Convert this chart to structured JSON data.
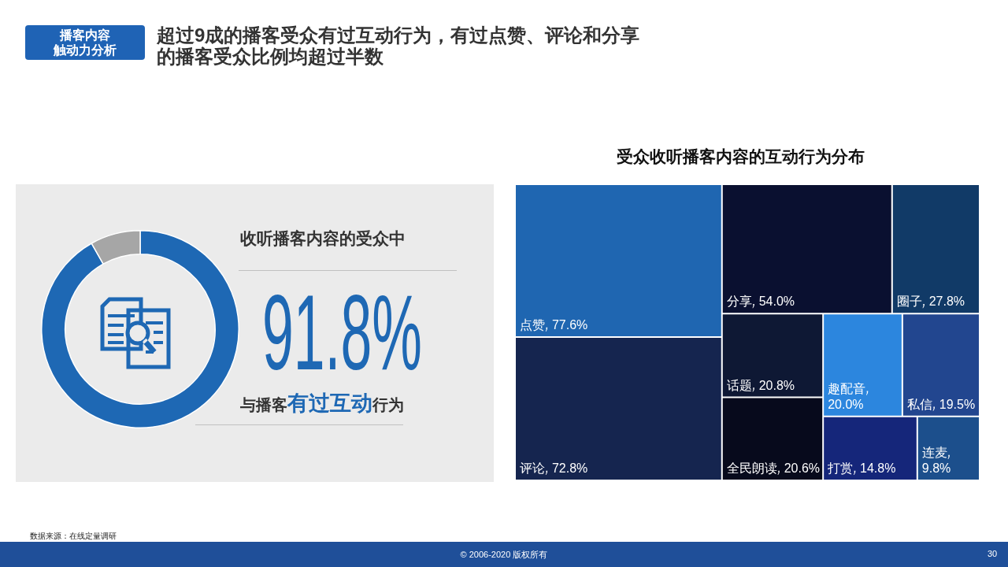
{
  "chart_data": [
    {
      "type": "donut",
      "title": "收听播客内容的受众中",
      "categories": [
        null,
        null
      ],
      "values": [
        91.8,
        8.2
      ],
      "colors": [
        "#1e68b4",
        "#a6a6a6"
      ],
      "value_labels": [
        "91.8%",
        null
      ],
      "annotations": [
        "播客内容",
        "触动力分析",
        "超过9成的播客受众有过互动行为，有过点赞、评论和分享的播客受众比例均超过半数",
        "与播客",
        "有过互动",
        "行为",
        "数据来源：在线定量调研",
        "© 2006-2020 版权所有",
        "30"
      ]
    },
    {
      "type": "other",
      "title": "受众收听播客内容的互动行为分布",
      "categories": [
        "点赞",
        "评论",
        "分享",
        "圈子",
        "话题",
        "全民朗读",
        "趣配音",
        "私信",
        "打赏",
        "连麦"
      ],
      "values": [
        77.6,
        72.8,
        54.0,
        27.8,
        20.8,
        20.6,
        20.0,
        19.5,
        14.8,
        9.8
      ],
      "value_labels": [
        "77.6%",
        "72.8%",
        "54.0%",
        "27.8%",
        "20.8%",
        "20.6%",
        "20.0%",
        "19.5%",
        "14.8%",
        "9.8%"
      ],
      "colors": [
        "#1f66b1",
        "#15254f",
        "#0a1030",
        "#113a67",
        "#0e1834",
        "#070a1c",
        "#2c86de",
        "#22468f",
        "#15267a",
        "#1c4f8c"
      ]
    }
  ]
}
